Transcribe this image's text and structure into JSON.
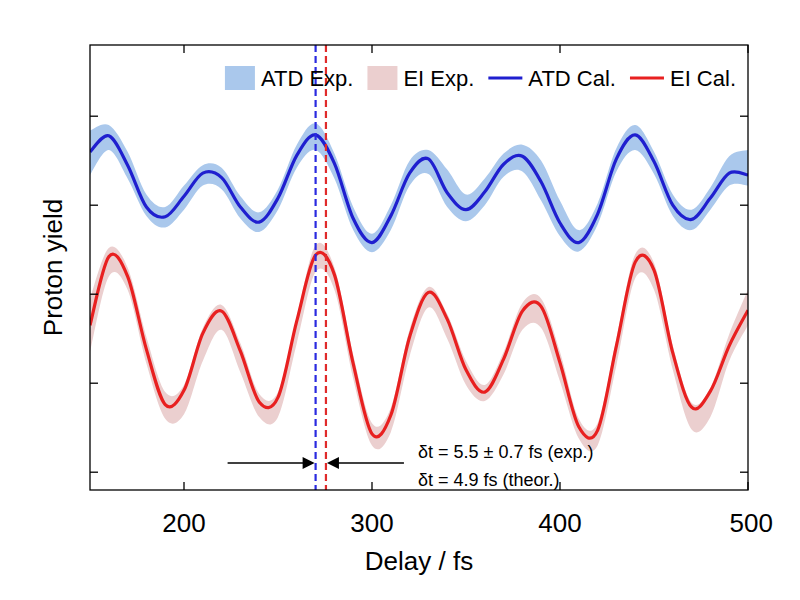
{
  "chart_data": {
    "type": "line",
    "x_label": "Delay / fs",
    "y_label": "Proton yield",
    "x": [
      150,
      160,
      170,
      180,
      190,
      200,
      210,
      220,
      230,
      240,
      250,
      260,
      270,
      280,
      290,
      300,
      310,
      320,
      330,
      340,
      350,
      360,
      370,
      380,
      390,
      400,
      410,
      420,
      430,
      440,
      450,
      460,
      470,
      480,
      490,
      500
    ],
    "xlim": [
      150,
      500
    ],
    "xticks": [
      200,
      300,
      400,
      500
    ],
    "ylim": [
      -0.2,
      4.8
    ],
    "yticks": [
      0,
      1,
      2,
      3,
      4
    ],
    "tick_labels": "x",
    "legend": "top",
    "series": [
      {
        "name": "ATD Exp.",
        "type": "band",
        "color": "#aac8ec",
        "lower": [
          3.34,
          3.62,
          3.3,
          2.88,
          2.75,
          2.95,
          3.22,
          3.18,
          2.85,
          2.7,
          2.95,
          3.42,
          3.62,
          3.3,
          2.72,
          2.47,
          2.72,
          3.22,
          3.35,
          2.98,
          2.82,
          3.0,
          3.32,
          3.38,
          3.05,
          2.65,
          2.48,
          2.78,
          3.38,
          3.62,
          3.35,
          2.88,
          2.72,
          2.95,
          3.22,
          3.22
        ],
        "upper": [
          3.84,
          3.9,
          3.6,
          3.12,
          2.98,
          3.22,
          3.45,
          3.42,
          3.1,
          2.92,
          3.18,
          3.68,
          3.92,
          3.58,
          2.98,
          2.68,
          3.0,
          3.5,
          3.62,
          3.4,
          3.12,
          3.3,
          3.58,
          3.68,
          3.5,
          3.05,
          2.72,
          3.02,
          3.64,
          3.9,
          3.6,
          3.12,
          2.95,
          3.2,
          3.55,
          3.62
        ]
      },
      {
        "name": "EI Exp.",
        "type": "band",
        "color": "#ebcfcf",
        "lower": [
          1.35,
          2.2,
          2.05,
          1.22,
          0.6,
          0.65,
          1.25,
          1.6,
          1.12,
          0.62,
          0.62,
          1.45,
          2.25,
          2.05,
          1.05,
          0.3,
          0.45,
          1.3,
          1.85,
          1.5,
          0.98,
          0.8,
          1.1,
          1.6,
          1.62,
          1.02,
          0.38,
          0.3,
          1.2,
          2.18,
          2.05,
          1.15,
          0.48,
          0.62,
          1.25,
          1.65
        ],
        "upper": [
          1.95,
          2.52,
          2.3,
          1.52,
          0.9,
          0.98,
          1.62,
          1.88,
          1.45,
          0.88,
          0.9,
          1.75,
          2.55,
          2.3,
          1.32,
          0.55,
          0.72,
          1.6,
          2.08,
          1.78,
          1.25,
          0.98,
          1.35,
          1.9,
          1.95,
          1.35,
          0.6,
          0.55,
          1.5,
          2.45,
          2.35,
          1.42,
          0.78,
          0.95,
          1.55,
          2.05
        ]
      },
      {
        "name": "ATD Cal.",
        "type": "line",
        "color": "#1f1fcf",
        "values": [
          3.6,
          3.78,
          3.45,
          2.98,
          2.87,
          3.1,
          3.36,
          3.31,
          2.98,
          2.81,
          3.08,
          3.56,
          3.79,
          3.47,
          2.85,
          2.58,
          2.88,
          3.36,
          3.52,
          3.14,
          2.95,
          3.15,
          3.46,
          3.55,
          3.26,
          2.8,
          2.58,
          2.9,
          3.52,
          3.79,
          3.49,
          3.0,
          2.84,
          3.08,
          3.36,
          3.34
        ]
      },
      {
        "name": "EI Cal.",
        "type": "line",
        "color": "#e82020",
        "values": [
          1.65,
          2.42,
          2.2,
          1.38,
          0.76,
          0.92,
          1.56,
          1.81,
          1.36,
          0.79,
          0.84,
          1.7,
          2.44,
          2.22,
          1.22,
          0.43,
          0.64,
          1.52,
          2.02,
          1.72,
          1.15,
          0.9,
          1.27,
          1.81,
          1.86,
          1.23,
          0.51,
          0.47,
          1.42,
          2.36,
          2.27,
          1.34,
          0.73,
          0.91,
          1.42,
          1.82
        ]
      }
    ],
    "vlines": [
      {
        "x": 270,
        "color": "#2a2ae0",
        "line_style": "dashed"
      },
      {
        "x": 275.5,
        "color": "#e02a2a",
        "line_style": "dashed"
      }
    ],
    "annotations": [
      "δt = 5.5 ± 0.7 fs (exp.)",
      "δt = 4.9 fs (theor.)"
    ]
  }
}
